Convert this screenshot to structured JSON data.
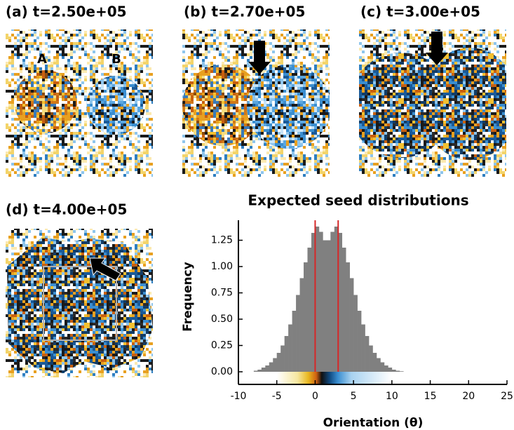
{
  "panels": [
    {
      "title": "(a)  t=2.50e+05",
      "labels": [
        "A",
        "B"
      ]
    },
    {
      "title": "(b)  t=2.70e+05"
    },
    {
      "title": "(c)  t=3.00e+05"
    },
    {
      "title": "(d)  t=4.00e+05"
    }
  ],
  "chart_data": {
    "type": "histogram",
    "title": "Expected seed distributions",
    "x_label": "Orientation (θ)",
    "y_label": "Frequency",
    "color": "#808080",
    "bins": [
      -8,
      -7.5,
      -7,
      -6.5,
      -6,
      -5.5,
      -5,
      -4.5,
      -4,
      -3.5,
      -3,
      -2.5,
      -2,
      -1.5,
      -1,
      -0.5,
      0,
      0.5,
      1,
      1.5,
      2,
      2.5,
      3,
      3.5,
      4,
      4.5,
      5,
      5.5,
      6,
      6.5,
      7,
      7.5,
      8,
      8.5,
      9,
      9.5,
      10,
      10.5,
      11,
      11.5
    ],
    "values": [
      0.01,
      0.02,
      0.04,
      0.06,
      0.09,
      0.13,
      0.18,
      0.25,
      0.34,
      0.45,
      0.58,
      0.73,
      0.89,
      1.04,
      1.18,
      1.32,
      1.38,
      1.33,
      1.25,
      1.25,
      1.33,
      1.38,
      1.32,
      1.18,
      1.04,
      0.89,
      0.73,
      0.58,
      0.45,
      0.34,
      0.25,
      0.18,
      0.13,
      0.09,
      0.06,
      0.04,
      0.02,
      0.01,
      0.005
    ],
    "vlines": [
      0,
      3
    ],
    "vline_color": "#d62728",
    "xlim": [
      -10,
      25
    ],
    "xticks": [
      -10,
      -5,
      0,
      5,
      10,
      15,
      20,
      25
    ],
    "ylim": [
      -0.12,
      1.44
    ],
    "yticks": [
      {
        "value": 0,
        "label": "0.00"
      },
      {
        "value": 0.25,
        "label": "0.25"
      },
      {
        "value": 0.5,
        "label": "0.50"
      },
      {
        "value": 0.75,
        "label": "0.75"
      },
      {
        "value": 1,
        "label": "1.00"
      },
      {
        "value": 1.25,
        "label": "1.25"
      }
    ]
  }
}
